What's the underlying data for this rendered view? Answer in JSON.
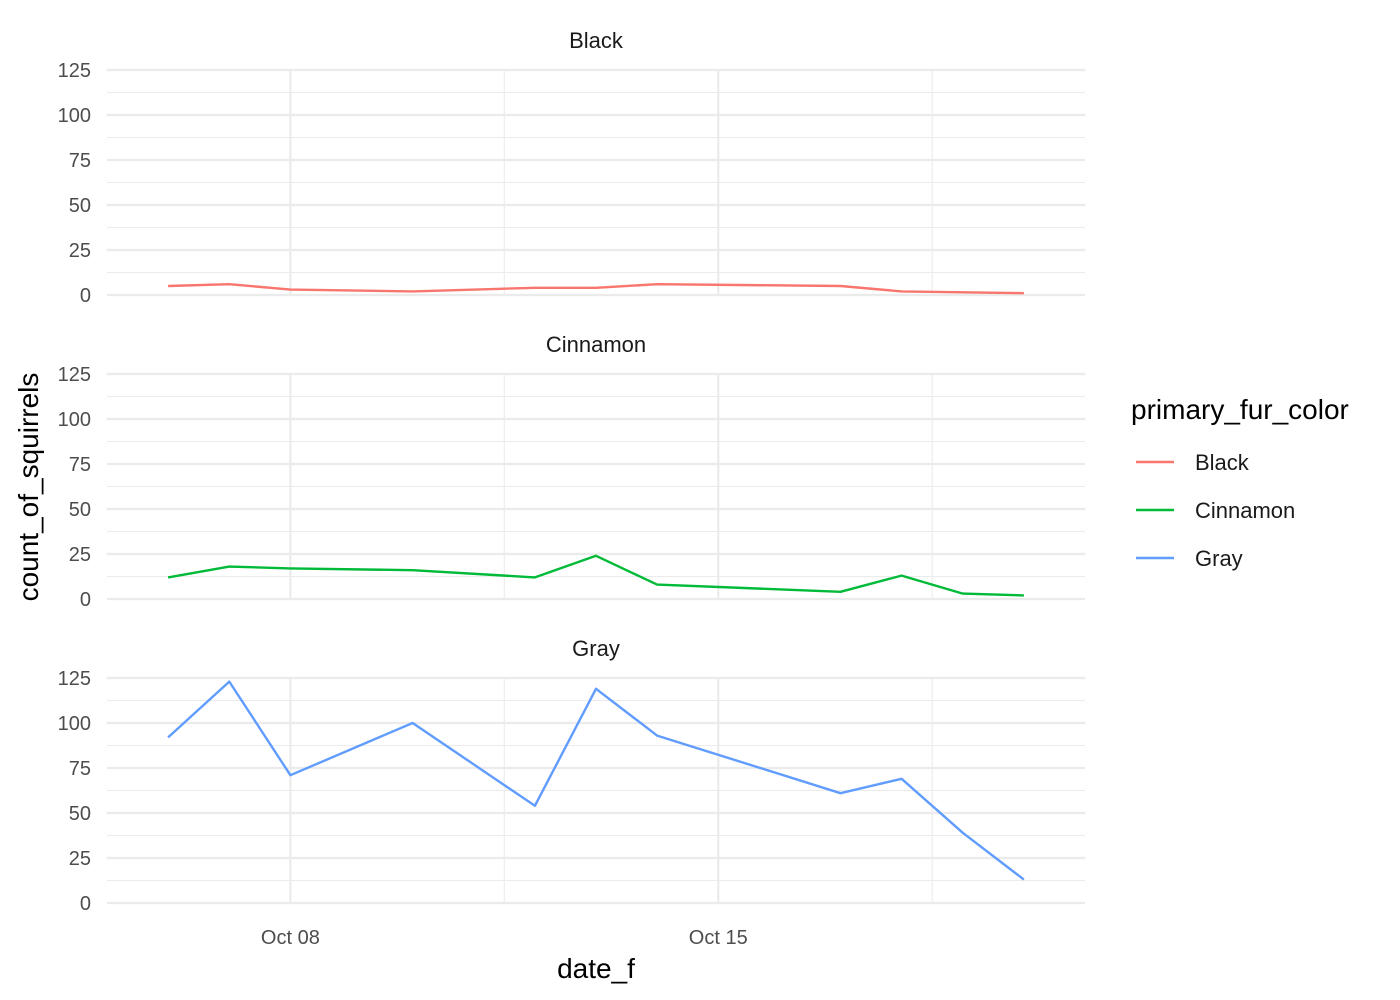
{
  "chart_data": {
    "type": "line",
    "xlabel": "date_f",
    "ylabel": "count_of_squirrels",
    "legend_title": "primary_fur_color",
    "legend_placement": "right",
    "grid": true,
    "x": [
      "2018-10-06",
      "2018-10-07",
      "2018-10-08",
      "2018-10-10",
      "2018-10-12",
      "2018-10-13",
      "2018-10-14",
      "2018-10-17",
      "2018-10-18",
      "2018-10-19",
      "2018-10-20"
    ],
    "xlim": [
      "2018-10-05",
      "2018-10-21"
    ],
    "x_ticks": [
      "2018-10-08",
      "2018-10-15"
    ],
    "x_tick_labels": [
      "Oct 08",
      "Oct 15"
    ],
    "ylim": [
      0,
      125
    ],
    "y_ticks": [
      0,
      25,
      50,
      75,
      100,
      125
    ],
    "y_tick_labels": [
      "0",
      "25",
      "50",
      "75",
      "100",
      "125"
    ],
    "series": [
      {
        "name": "Black",
        "color": "#F8766D",
        "values": [
          5,
          6,
          3,
          2,
          4,
          4,
          6,
          5,
          2,
          1.5,
          1
        ]
      },
      {
        "name": "Cinnamon",
        "color": "#00BA38",
        "values": [
          12,
          18,
          17,
          16,
          12,
          24,
          8,
          4,
          13,
          3,
          2
        ]
      },
      {
        "name": "Gray",
        "color": "#619CFF",
        "values": [
          92,
          123,
          71,
          100,
          54,
          119,
          93,
          61,
          69,
          39,
          13
        ]
      }
    ]
  }
}
